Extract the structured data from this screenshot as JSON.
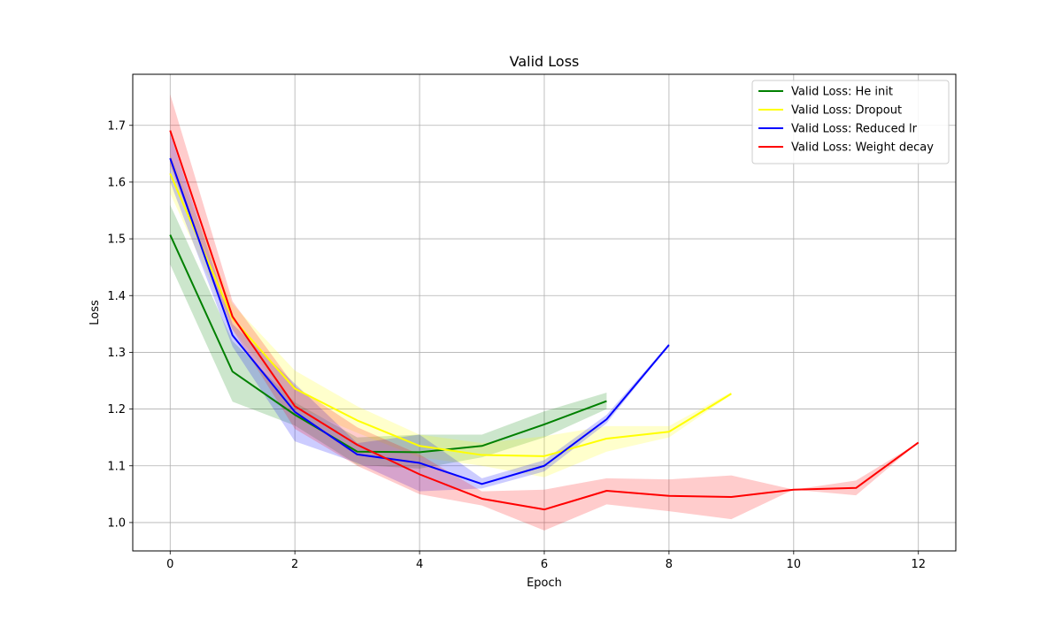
{
  "chart_data": {
    "type": "line",
    "title": "Valid Loss",
    "xlabel": "Epoch",
    "ylabel": "Loss",
    "xlim": [
      -0.6,
      12.6
    ],
    "ylim": [
      0.95,
      1.79
    ],
    "xticks": [
      0,
      2,
      4,
      6,
      8,
      10,
      12
    ],
    "yticks": [
      1.0,
      1.1,
      1.2,
      1.3,
      1.4,
      1.5,
      1.6,
      1.7
    ],
    "grid": true,
    "legend_position": "top-right",
    "series": [
      {
        "name": "Valid Loss: He init",
        "color": "#008000",
        "x": [
          0,
          1,
          2,
          3,
          4,
          5,
          6,
          7
        ],
        "values": [
          1.507,
          1.266,
          1.19,
          1.125,
          1.124,
          1.135,
          1.173,
          1.214
        ],
        "band_lower": [
          1.455,
          1.213,
          1.171,
          1.102,
          1.095,
          1.115,
          1.15,
          1.2
        ],
        "band_upper": [
          1.56,
          1.32,
          1.212,
          1.15,
          1.155,
          1.155,
          1.196,
          1.229
        ]
      },
      {
        "name": "Valid Loss: Dropout",
        "color": "#ffff00",
        "x": [
          0,
          1,
          2,
          3,
          4,
          5,
          6,
          7,
          8,
          9
        ],
        "values": [
          1.615,
          1.36,
          1.236,
          1.18,
          1.135,
          1.119,
          1.117,
          1.148,
          1.16,
          1.227
        ],
        "band_lower": [
          1.58,
          1.34,
          1.205,
          1.158,
          1.115,
          1.1,
          1.08,
          1.125,
          1.15,
          1.225
        ],
        "band_upper": [
          1.65,
          1.385,
          1.268,
          1.205,
          1.155,
          1.14,
          1.152,
          1.17,
          1.17,
          1.23
        ]
      },
      {
        "name": "Valid Loss: Reduced lr",
        "color": "#0000ff",
        "x": [
          0,
          1,
          2,
          3,
          4,
          5,
          6,
          7,
          8
        ],
        "values": [
          1.642,
          1.33,
          1.195,
          1.12,
          1.105,
          1.068,
          1.1,
          1.182,
          1.313
        ],
        "band_lower": [
          1.6,
          1.31,
          1.143,
          1.105,
          1.055,
          1.06,
          1.09,
          1.175,
          1.312
        ],
        "band_upper": [
          1.685,
          1.35,
          1.245,
          1.14,
          1.155,
          1.078,
          1.11,
          1.19,
          1.315
        ]
      },
      {
        "name": "Valid Loss: Weight decay",
        "color": "#ff0000",
        "x": [
          0,
          1,
          2,
          3,
          4,
          5,
          6,
          7,
          8,
          9,
          10,
          11,
          12
        ],
        "values": [
          1.691,
          1.363,
          1.205,
          1.137,
          1.085,
          1.042,
          1.023,
          1.056,
          1.047,
          1.045,
          1.058,
          1.061,
          1.141
        ],
        "band_lower": [
          1.63,
          1.34,
          1.165,
          1.1,
          1.05,
          1.03,
          0.986,
          1.032,
          1.02,
          1.006,
          1.058,
          1.048,
          1.141
        ],
        "band_upper": [
          1.755,
          1.39,
          1.24,
          1.168,
          1.12,
          1.055,
          1.058,
          1.078,
          1.076,
          1.083,
          1.058,
          1.074,
          1.141
        ]
      }
    ]
  }
}
